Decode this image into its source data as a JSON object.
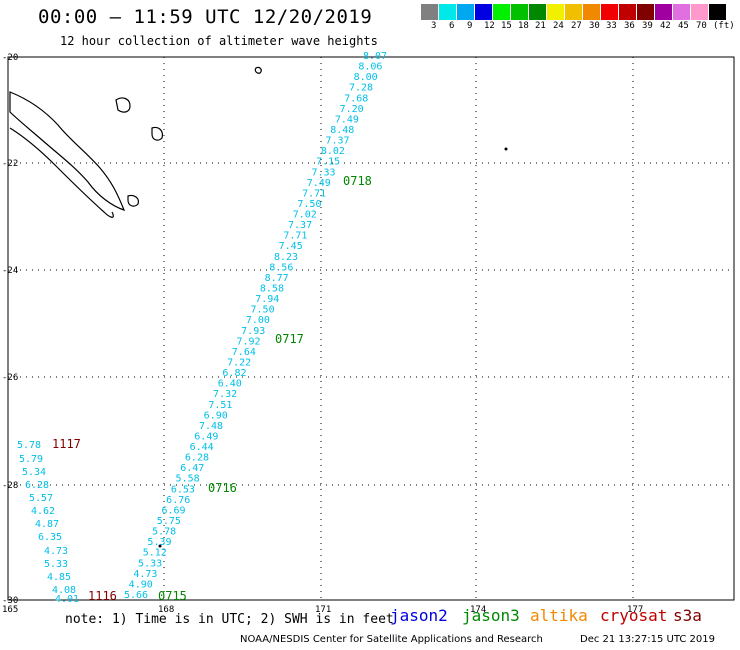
{
  "header": {
    "title": "00:00 – 11:59 UTC 12/20/2019",
    "subtitle": "12 hour collection of altimeter wave heights"
  },
  "colorbar": {
    "colors": [
      "#808080",
      "#00e8e8",
      "#00a8f0",
      "#0000e0",
      "#00f000",
      "#00c000",
      "#008800",
      "#f0f000",
      "#f0c000",
      "#f08800",
      "#f00000",
      "#c00000",
      "#800000",
      "#a000a0",
      "#e070e0",
      "#ff99cc",
      "#000000"
    ],
    "labels": [
      "3",
      "6",
      "9",
      "12",
      "15",
      "18",
      "21",
      "24",
      "27",
      "30",
      "33",
      "36",
      "39",
      "42",
      "45",
      "70",
      "(ft)"
    ]
  },
  "map": {
    "lat_labels": [
      "-20",
      "-22",
      "-24",
      "-26",
      "-28",
      "-30"
    ],
    "lon_labels": [
      "165",
      "168",
      "171",
      "174",
      "177"
    ],
    "coast_color": "#000000",
    "grid_color": "#000000"
  },
  "tracks": [
    {
      "satellite": "jason3",
      "color": "#00bfe8",
      "time_color": "#008800",
      "values": [
        "8.07",
        "8.06",
        "8.00",
        "7.28",
        "7.68",
        "7.20",
        "7.49",
        "8.48",
        "7.37",
        "8.02",
        "7.15",
        "7.33",
        "7.49",
        "7.71",
        "7.50",
        "7.02",
        "7.37",
        "7.71",
        "7.45",
        "8.23",
        "8.56",
        "8.77",
        "8.58",
        "7.94",
        "7.50",
        "7.00",
        "7.93",
        "7.92",
        "7.64",
        "7.22",
        "6.82",
        "6.40",
        "7.32",
        "7.51",
        "6.90",
        "7.48",
        "6.49",
        "6.44",
        "6.28",
        "6.47",
        "5.58",
        "6.53",
        "6.76",
        "6.69",
        "5.75",
        "5.78",
        "5.39",
        "5.12",
        "5.33",
        "4.73",
        "4.90",
        "5.66"
      ],
      "times": [
        "0718",
        "0717",
        "0716",
        "0715"
      ]
    },
    {
      "satellite": "cryosat",
      "color": "#00bfe8",
      "time_color": "#800000",
      "values": [
        "5.78",
        "5.79",
        "5.34",
        "6.28",
        "5.57",
        "4.62",
        "4.87",
        "6.35",
        "4.73",
        "5.33",
        "4.85",
        "4.08",
        "4.01"
      ],
      "times": [
        "1117",
        "1116"
      ]
    }
  ],
  "footer": {
    "note": "note: 1) Time is in UTC; 2) SWH is in feet",
    "satellites": [
      {
        "label": "jason2",
        "color": "#0000e0"
      },
      {
        "label": "jason3",
        "color": "#008800"
      },
      {
        "label": "altika",
        "color": "#f08800"
      },
      {
        "label": "cryosat",
        "color": "#c00000"
      },
      {
        "label": "s3a",
        "color": "#800000"
      }
    ],
    "credit": "NOAA/NESDIS Center for Satellite Applications and Research",
    "timestamp": "Dec 21 13:27:15 UTC 2019"
  }
}
